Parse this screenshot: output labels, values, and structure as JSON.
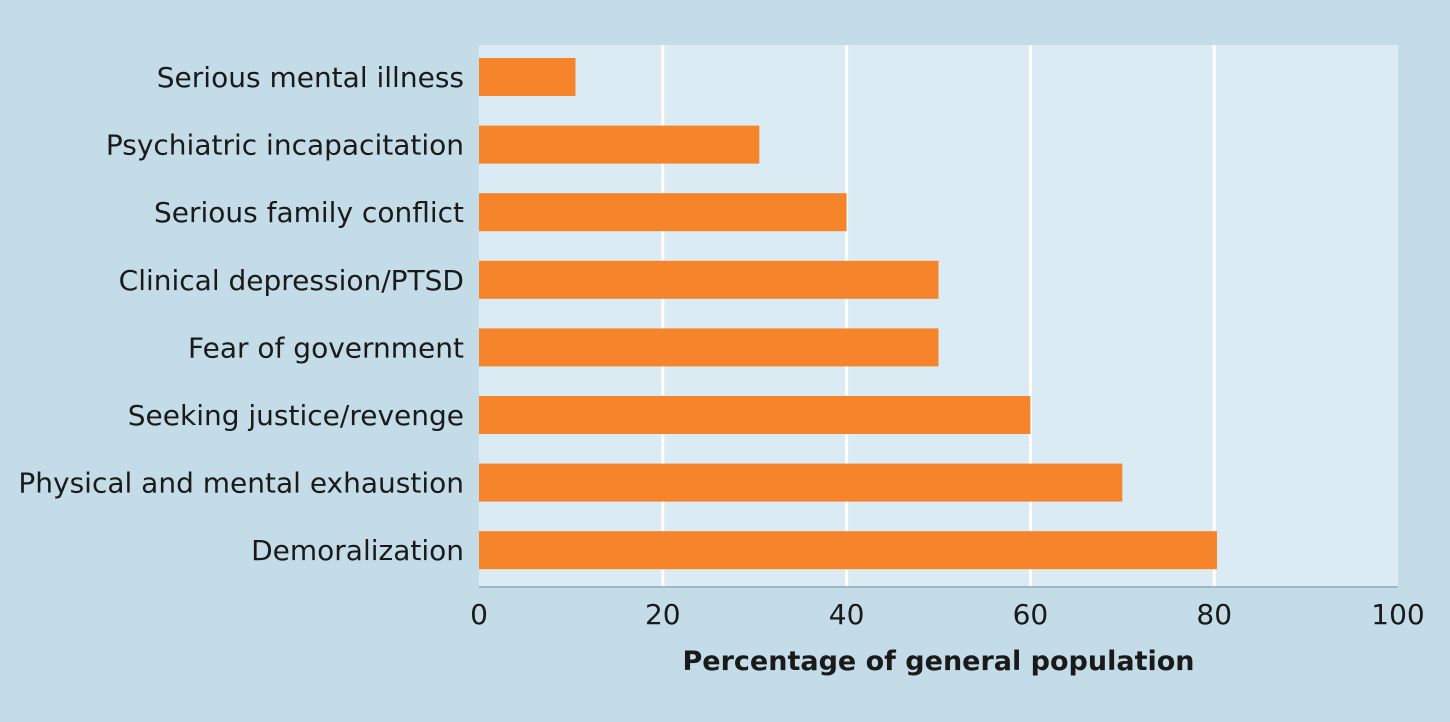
{
  "chart_data": {
    "type": "bar",
    "orientation": "horizontal",
    "categories": [
      "Serious mental illness",
      "Psychiatric incapacitation",
      "Serious family conflict",
      "Clinical depression/PTSD",
      "Fear of government",
      "Seeking justice/revenge",
      "Physical and mental exhaustion",
      "Demoralization"
    ],
    "values": [
      10.5,
      30.5,
      40,
      50,
      50,
      60,
      70,
      80.3
    ],
    "title": "",
    "xlabel": "Percentage of general population",
    "ylabel": "",
    "xlim": [
      0,
      100
    ],
    "xticks": [
      "0",
      "20",
      "40",
      "60",
      "80",
      "100"
    ],
    "grid": true,
    "legend": "none",
    "colors": {
      "bar": "#f5842b",
      "plot_background": "#dbebf3",
      "page_background": "#c3dce8",
      "gridline": "#ffffff",
      "axis": "#9db8c6"
    }
  }
}
